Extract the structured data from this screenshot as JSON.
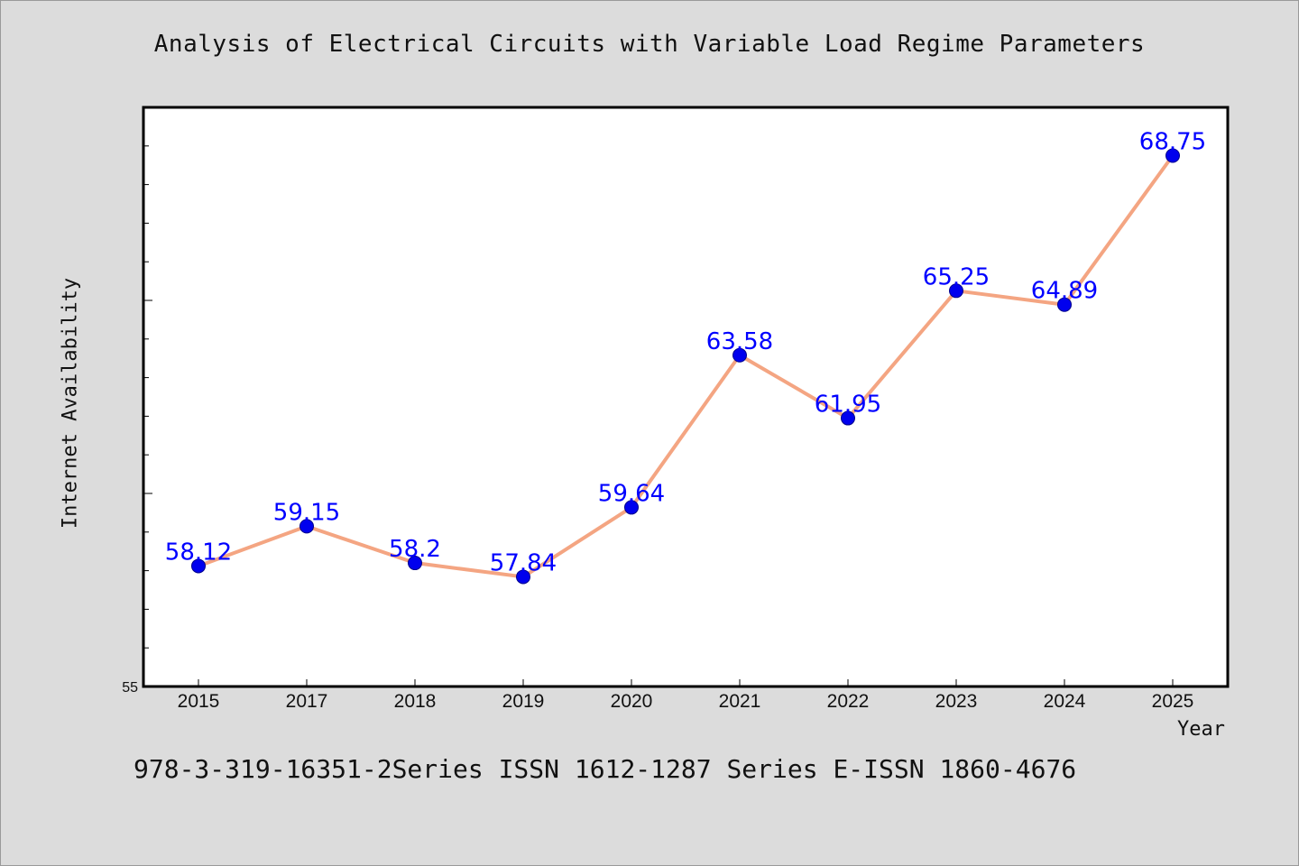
{
  "chart_data": {
    "type": "line",
    "title": "Analysis of Electrical Circuits with Variable Load Regime Parameters",
    "xlabel": "Year",
    "ylabel": "Internet Availability",
    "categories": [
      "2015",
      "2017",
      "2018",
      "2019",
      "2020",
      "2021",
      "2022",
      "2023",
      "2024",
      "2025"
    ],
    "series": [
      {
        "values": [
          58.12,
          59.15,
          58.2,
          57.84,
          59.64,
          63.58,
          61.95,
          65.25,
          64.89,
          68.75
        ],
        "labels": [
          "58.12",
          "59.15",
          "58.2",
          "57.84",
          "59.64",
          "63.58",
          "61.95",
          "65.25",
          "64.89",
          "68.75"
        ]
      }
    ],
    "ylim": [
      55,
      70
    ],
    "y_tick_labels": [
      "55"
    ],
    "grid": false,
    "legend": "none",
    "colors": {
      "line": "#f4a582",
      "marker": "#0000ee",
      "marker_edge": "#00008b",
      "data_label": "#0000ff",
      "plot_background": "#ffffff",
      "figure_background": "#dcdcdc"
    }
  },
  "footer": {
    "text": "978-3-319-16351-2Series ISSN 1612-1287 Series E-ISSN 1860-4676"
  }
}
